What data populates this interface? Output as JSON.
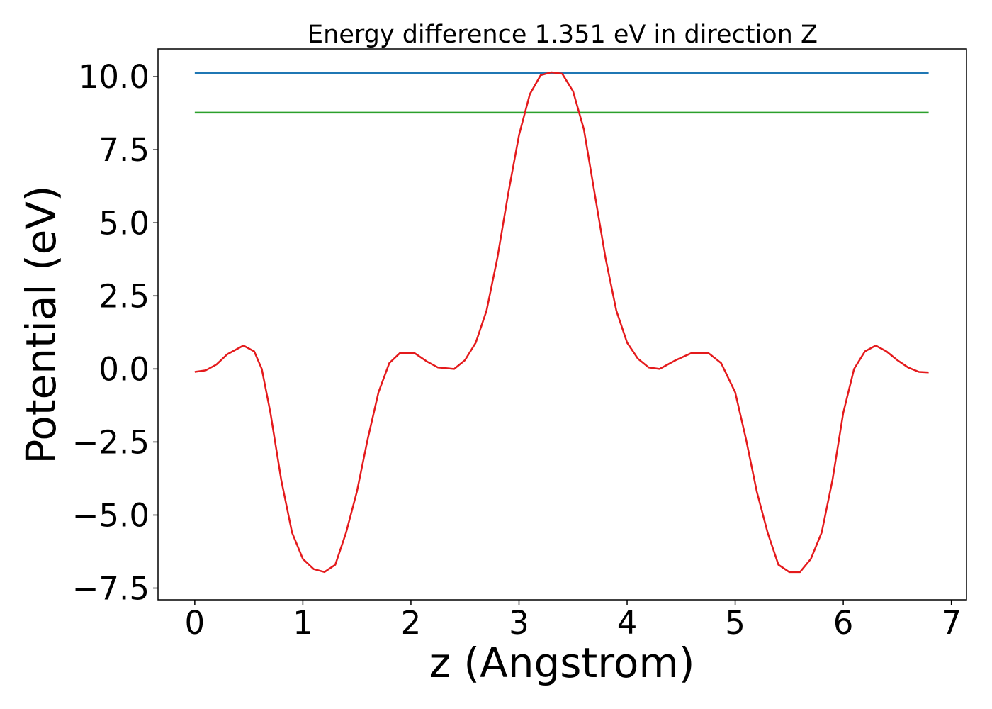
{
  "chart_data": {
    "type": "line",
    "title": "Energy difference 1.351 eV in direction Z",
    "xlabel": "z (Angstrom)",
    "ylabel": "Potential (eV)",
    "xlim": [
      -0.34,
      7.14
    ],
    "ylim": [
      -7.9,
      10.95
    ],
    "xticks": [
      0,
      1,
      2,
      3,
      4,
      5,
      6,
      7
    ],
    "xtick_labels": [
      "0",
      "1",
      "2",
      "3",
      "4",
      "5",
      "6",
      "7"
    ],
    "yticks": [
      -7.5,
      -5.0,
      -2.5,
      0.0,
      2.5,
      5.0,
      7.5,
      10.0
    ],
    "ytick_labels": [
      "−7.5",
      "−5.0",
      "−2.5",
      "0.0",
      "2.5",
      "5.0",
      "7.5",
      "10.0"
    ],
    "grid": false,
    "legend": "none",
    "series": [
      {
        "color": "#1f77b4",
        "x": [
          0,
          6.79
        ],
        "y": [
          10.12,
          10.12
        ]
      },
      {
        "color": "#2ca02c",
        "x": [
          0,
          6.79
        ],
        "y": [
          8.77,
          8.77
        ]
      },
      {
        "color": "#e41a1c",
        "x": [
          0,
          0.1,
          0.2,
          0.3,
          0.45,
          0.55,
          0.62,
          0.7,
          0.8,
          0.9,
          1.0,
          1.1,
          1.2,
          1.3,
          1.4,
          1.5,
          1.6,
          1.7,
          1.8,
          1.9,
          2.03,
          2.15,
          2.25,
          2.4,
          2.5,
          2.6,
          2.7,
          2.8,
          2.9,
          3.0,
          3.1,
          3.2,
          3.3,
          3.4,
          3.5,
          3.6,
          3.7,
          3.8,
          3.9,
          4.0,
          4.1,
          4.2,
          4.3,
          4.45,
          4.6,
          4.75,
          4.87,
          5.0,
          5.1,
          5.2,
          5.3,
          5.4,
          5.5,
          5.6,
          5.7,
          5.8,
          5.9,
          6.0,
          6.1,
          6.2,
          6.3,
          6.4,
          6.5,
          6.6,
          6.7,
          6.79
        ],
        "y": [
          -0.1,
          -0.05,
          0.15,
          0.5,
          0.8,
          0.6,
          0.0,
          -1.5,
          -3.8,
          -5.6,
          -6.5,
          -6.85,
          -6.95,
          -6.7,
          -5.6,
          -4.2,
          -2.4,
          -0.8,
          0.2,
          0.55,
          0.55,
          0.25,
          0.05,
          0.0,
          0.3,
          0.9,
          2.0,
          3.8,
          6.0,
          8.0,
          9.4,
          10.05,
          10.15,
          10.1,
          9.5,
          8.2,
          6.0,
          3.8,
          2.0,
          0.9,
          0.35,
          0.05,
          0.0,
          0.3,
          0.55,
          0.55,
          0.2,
          -0.8,
          -2.4,
          -4.2,
          -5.6,
          -6.7,
          -6.95,
          -6.95,
          -6.5,
          -5.6,
          -3.8,
          -1.5,
          0.0,
          0.6,
          0.8,
          0.6,
          0.3,
          0.05,
          -0.1,
          -0.12
        ]
      }
    ]
  }
}
